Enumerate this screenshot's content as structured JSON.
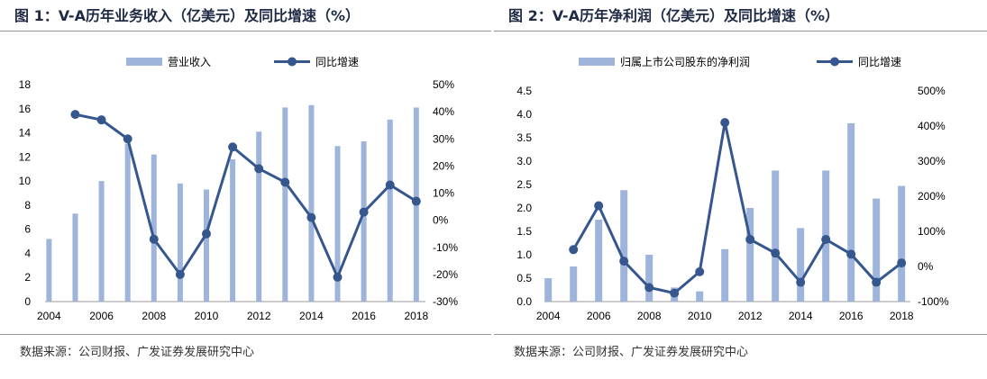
{
  "charts": [
    {
      "figure_title": "图 1：V-A历年业务收入（亿美元）及同比增速（%）",
      "source": "数据来源：公司财报、广发证券发展研究中心",
      "legend": {
        "bar_label": "营业收入",
        "line_label": "同比增速"
      },
      "colors": {
        "bar": "#9fb4db",
        "line": "#35578e"
      },
      "chart_data": {
        "type": "bar+line",
        "years": [
          2004,
          2005,
          2006,
          2007,
          2008,
          2009,
          2010,
          2011,
          2012,
          2013,
          2014,
          2015,
          2016,
          2017,
          2018
        ],
        "x_ticks": [
          "2004",
          "2006",
          "2008",
          "2010",
          "2012",
          "2014",
          "2016",
          "2018"
        ],
        "left_axis": {
          "min": 0,
          "max": 18,
          "step": 2,
          "tick_labels": [
            "0",
            "2",
            "4",
            "6",
            "8",
            "10",
            "12",
            "14",
            "16",
            "18"
          ]
        },
        "right_axis": {
          "min": -30,
          "max": 50,
          "step": 10,
          "tick_labels": [
            "-30%",
            "-20%",
            "-10%",
            "0%",
            "10%",
            "20%",
            "30%",
            "40%",
            "50%"
          ]
        },
        "series": [
          {
            "name": "营业收入",
            "type": "bar",
            "axis": "left",
            "values": [
              5.2,
              7.3,
              10.0,
              13.1,
              12.2,
              9.8,
              9.3,
              11.8,
              14.1,
              16.1,
              16.3,
              12.9,
              13.3,
              15.1,
              16.1
            ]
          },
          {
            "name": "同比增速",
            "type": "line",
            "axis": "right",
            "values": [
              null,
              39,
              37,
              30,
              -7,
              -20,
              -5,
              27,
              19,
              14,
              1,
              -21,
              3,
              13,
              7
            ]
          }
        ]
      }
    },
    {
      "figure_title": "图 2：V-A历年净利润（亿美元）及同比增速（%）",
      "source": "数据来源：公司财报、广发证券发展研究中心",
      "legend": {
        "bar_label": "归属上市公司股东的净利润",
        "line_label": "同比增速"
      },
      "colors": {
        "bar": "#9fb4db",
        "line": "#35578e"
      },
      "chart_data": {
        "type": "bar+line",
        "years": [
          2004,
          2005,
          2006,
          2007,
          2008,
          2009,
          2010,
          2011,
          2012,
          2013,
          2014,
          2015,
          2016,
          2017,
          2018
        ],
        "x_ticks": [
          "2004",
          "2006",
          "2008",
          "2010",
          "2012",
          "2014",
          "2016",
          "2018"
        ],
        "left_axis": {
          "min": 0,
          "max": 4.5,
          "step": 0.5,
          "tick_labels": [
            "0.0",
            "0.5",
            "1.0",
            "1.5",
            "2.0",
            "2.5",
            "3.0",
            "3.5",
            "4.0",
            "4.5"
          ]
        },
        "right_axis": {
          "min": -100,
          "max": 500,
          "step": 100,
          "tick_labels": [
            "-100%",
            "0%",
            "100%",
            "200%",
            "300%",
            "400%",
            "500%"
          ]
        },
        "series": [
          {
            "name": "归属上市公司股东的净利润",
            "type": "bar",
            "axis": "left",
            "values": [
              0.5,
              0.75,
              1.75,
              2.38,
              1.0,
              0.3,
              0.22,
              1.12,
              2.0,
              2.8,
              1.57,
              2.8,
              3.81,
              2.2,
              2.47
            ]
          },
          {
            "name": "同比增速",
            "type": "line",
            "axis": "right",
            "values": [
              null,
              48,
              173,
              15,
              -60,
              -76,
              -15,
              410,
              77,
              38,
              -45,
              77,
              35,
              -45,
              10
            ]
          }
        ]
      }
    }
  ]
}
